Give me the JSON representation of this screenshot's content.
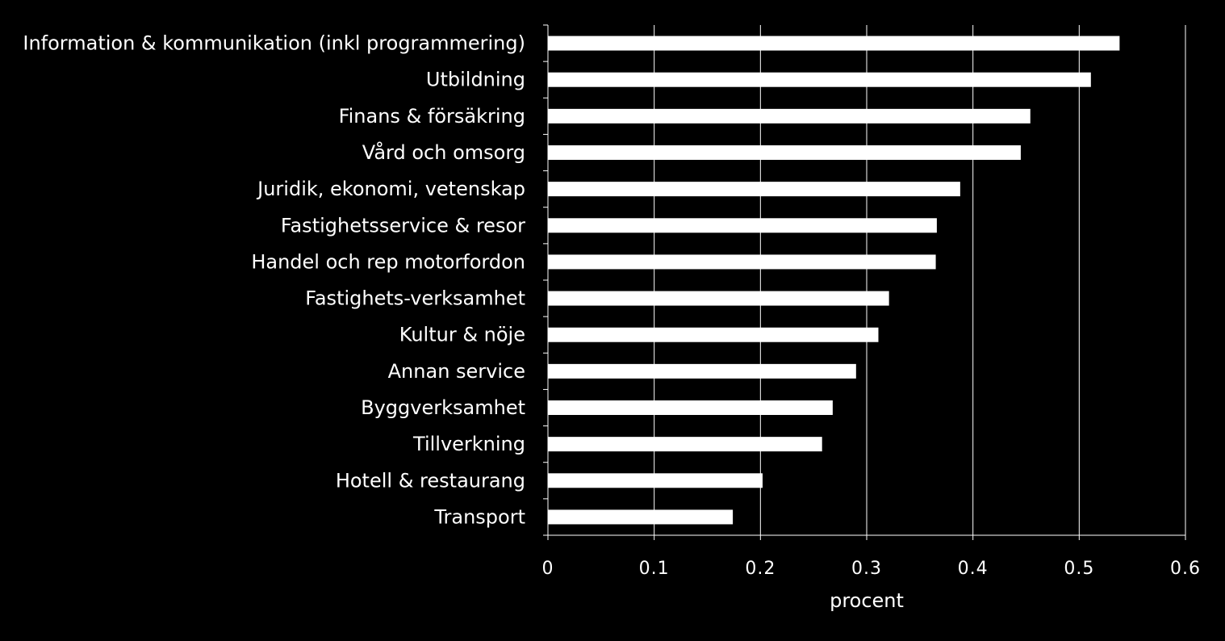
{
  "chart_data": {
    "type": "bar",
    "orientation": "horizontal",
    "categories": [
      "Information & kommunikation (inkl programmering)",
      "Utbildning",
      "Finans & försäkring",
      "Vård och omsorg",
      "Juridik, ekonomi, vetenskap",
      "Fastighetsservice & resor",
      "Handel och rep motorfordon",
      "Fastighets-verksamhet",
      "Kultur & nöje",
      "Annan service",
      "Byggverksamhet",
      "Tillverkning",
      "Hotell & restaurang",
      "Transport"
    ],
    "values": [
      0.538,
      0.511,
      0.454,
      0.445,
      0.388,
      0.366,
      0.365,
      0.321,
      0.311,
      0.29,
      0.268,
      0.258,
      0.202,
      0.174
    ],
    "xlabel": "procent",
    "ylabel": "",
    "xlim": [
      0,
      0.6
    ],
    "xticks": [
      "0",
      "0.1",
      "0.2",
      "0.3",
      "0.4",
      "0.5",
      "0.6"
    ],
    "grid": true,
    "legend": "none",
    "colors": {
      "background": "#000000",
      "bar": "#ffffff",
      "text": "#ffffff",
      "grid": "#ffffff"
    }
  }
}
